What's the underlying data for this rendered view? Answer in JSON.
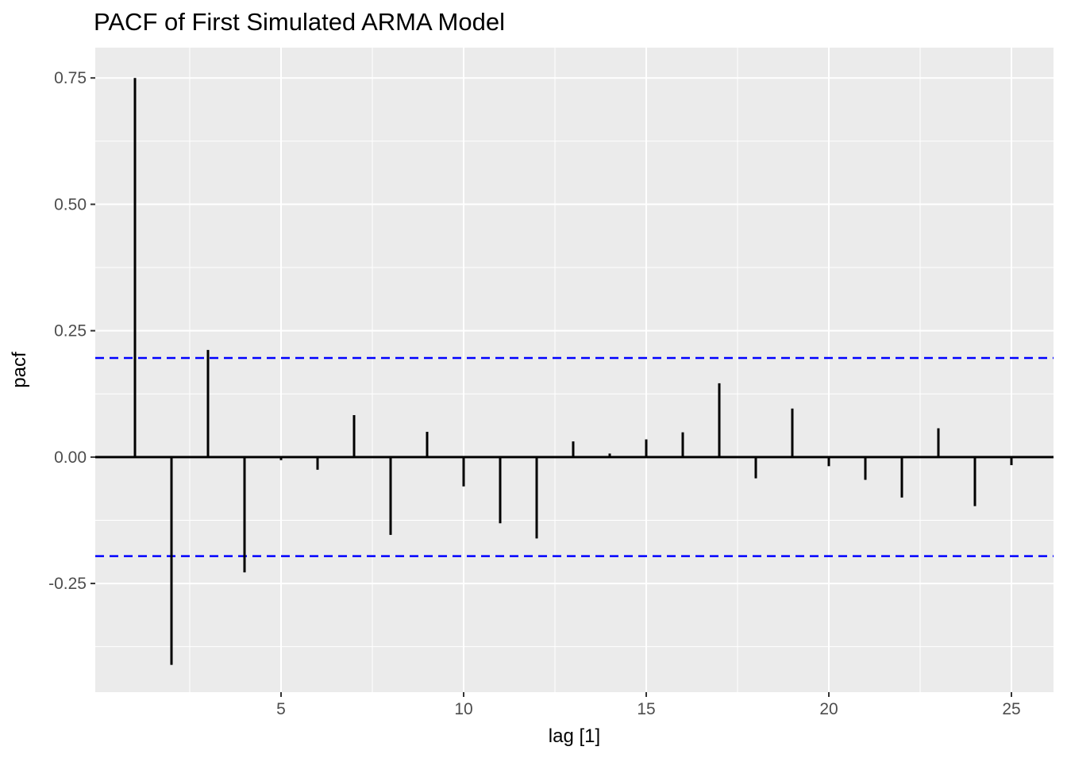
{
  "chart_data": {
    "type": "bar",
    "title": "PACF of First Simulated ARMA Model",
    "xlabel": "lag [1]",
    "ylabel": "pacf",
    "x": [
      1,
      2,
      3,
      4,
      5,
      6,
      7,
      8,
      9,
      10,
      11,
      12,
      13,
      14,
      15,
      16,
      17,
      18,
      19,
      20,
      21,
      22,
      23,
      24,
      25
    ],
    "values": [
      0.75,
      -0.411,
      0.212,
      -0.228,
      -0.006,
      -0.025,
      0.083,
      -0.154,
      0.05,
      -0.058,
      -0.131,
      -0.161,
      0.031,
      0.007,
      0.035,
      0.049,
      0.146,
      -0.042,
      0.096,
      -0.018,
      -0.045,
      -0.08,
      0.057,
      -0.097,
      -0.016
    ],
    "ci_lines": {
      "upper": 0.196,
      "lower": -0.196,
      "style": "dashed"
    },
    "x_ticks": [
      5,
      10,
      15,
      20,
      25
    ],
    "x_tick_labels": [
      "5",
      "10",
      "15",
      "20",
      "25"
    ],
    "x_minor_ticks": [
      2.5,
      7.5,
      12.5,
      17.5,
      22.5
    ],
    "y_ticks": [
      0.75,
      0.5,
      0.25,
      0.0,
      -0.25
    ],
    "y_tick_labels": [
      "0.75",
      "0.50",
      "0.25",
      "0.00",
      "-0.25"
    ],
    "y_minor_ticks": [
      0.625,
      0.375,
      0.125,
      -0.125,
      -0.375
    ],
    "xlim": [
      -0.087,
      26.152
    ],
    "ylim": [
      -0.465,
      0.81
    ],
    "grid": true,
    "legend": false,
    "colors": {
      "panel_background": "#EBEBEB",
      "grid": "#FFFFFF",
      "bars": "#000000",
      "zero_line": "#000000",
      "ci_line": "#0000FF",
      "tick_text": "#4D4D4D",
      "tick_mark": "#333333",
      "title_text": "#000000"
    }
  }
}
